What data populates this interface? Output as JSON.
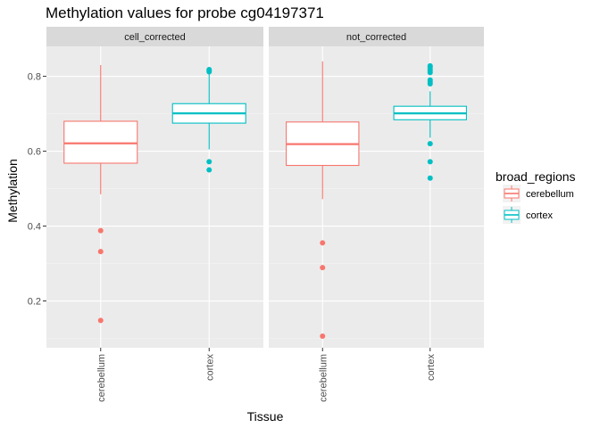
{
  "chart_data": {
    "type": "boxplot",
    "title": "Methylation values for probe cg04197371",
    "xlabel": "Tissue",
    "ylabel": "Methylation",
    "ylim": [
      0.075,
      0.88
    ],
    "yticks": [
      0.2,
      0.4,
      0.6,
      0.8
    ],
    "ytick_labels": [
      "0.2",
      "0.4",
      "0.6",
      "0.8"
    ],
    "categories": [
      "cerebellum",
      "cortex"
    ],
    "grid": true,
    "legend": {
      "title": "broad_regions",
      "position": "right",
      "entries": [
        {
          "label": "cerebellum",
          "color": "#F8766D"
        },
        {
          "label": "cortex",
          "color": "#00BFC4"
        }
      ]
    },
    "panels": [
      {
        "label": "cell_corrected",
        "boxes": [
          {
            "category": "cerebellum",
            "color": "#F8766D",
            "min": 0.485,
            "q1": 0.568,
            "median": 0.621,
            "q3": 0.68,
            "max": 0.83,
            "outliers": [
              0.388,
              0.332,
              0.148
            ]
          },
          {
            "category": "cortex",
            "color": "#00BFC4",
            "min": 0.605,
            "q1": 0.675,
            "median": 0.701,
            "q3": 0.727,
            "max": 0.808,
            "outliers": [
              0.812,
              0.815,
              0.818,
              0.572,
              0.55
            ]
          }
        ]
      },
      {
        "label": "not_corrected",
        "boxes": [
          {
            "category": "cerebellum",
            "color": "#F8766D",
            "min": 0.472,
            "q1": 0.562,
            "median": 0.619,
            "q3": 0.678,
            "max": 0.84,
            "outliers": [
              0.355,
              0.289,
              0.106
            ]
          },
          {
            "category": "cortex",
            "color": "#00BFC4",
            "min": 0.636,
            "q1": 0.684,
            "median": 0.701,
            "q3": 0.72,
            "max": 0.76,
            "outliers": [
              0.81,
              0.815,
              0.82,
              0.825,
              0.828,
              0.78,
              0.785,
              0.79,
              0.62,
              0.572,
              0.528
            ]
          }
        ]
      }
    ]
  }
}
